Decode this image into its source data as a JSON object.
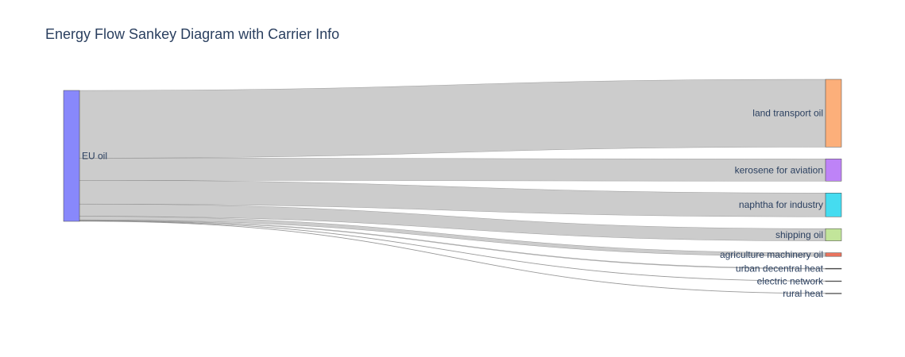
{
  "title": "Energy Flow Sankey Diagram with Carrier Info",
  "chart_data": {
    "type": "sankey",
    "source": "EU oil",
    "source_color": "#8888fb",
    "link_color": "#cccccc",
    "nodes": [
      {
        "label": "land transport oil",
        "value": 47.0,
        "color": "#fcaf7a"
      },
      {
        "label": "kerosene for aviation",
        "value": 15.4,
        "color": "#be83f7"
      },
      {
        "label": "naphtha for industry",
        "value": 16.5,
        "color": "#45dcf0"
      },
      {
        "label": "shipping oil",
        "value": 8.5,
        "color": "#c2e59a"
      },
      {
        "label": "agriculture machinery oil",
        "value": 2.5,
        "color": "#ea735e"
      },
      {
        "label": "urban decentral heat",
        "value": 0.5,
        "color": "#555555"
      },
      {
        "label": "electric network",
        "value": 0.25,
        "color": "#555555"
      },
      {
        "label": "rural heat",
        "value": 0.25,
        "color": "#555555"
      }
    ]
  }
}
